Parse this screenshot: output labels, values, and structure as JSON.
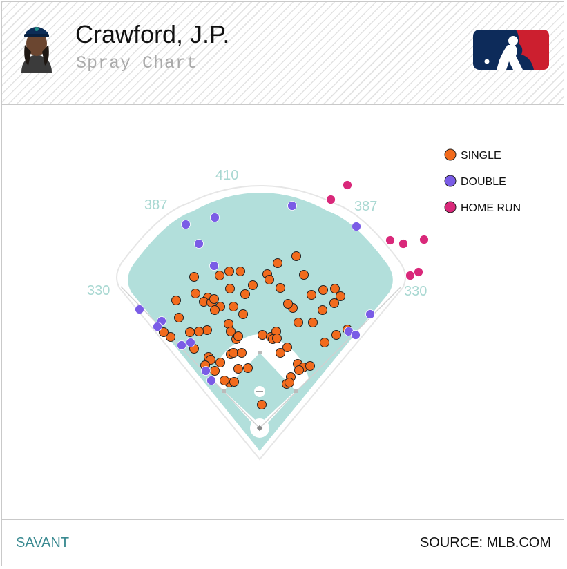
{
  "header": {
    "player_name": "Crawford, J.P.",
    "subtitle": "Spray Chart"
  },
  "footer": {
    "brand": "SAVANT",
    "source": "SOURCE: MLB.COM"
  },
  "colors": {
    "outfield": "#b2dfdb",
    "fence_label": "#a9d8d2",
    "single": "#f26b1d",
    "double": "#7a5ce6",
    "home_run": "#d9287a",
    "logo_blue": "#0d2b5a",
    "logo_red": "#cc1f2f"
  },
  "chart_data": {
    "type": "scatter",
    "title": "Spray Chart",
    "distance_labels": [
      "330",
      "387",
      "410",
      "387",
      "330"
    ],
    "legend": [
      {
        "key": "single",
        "label": "SINGLE",
        "color": "#f26b1d"
      },
      {
        "key": "double",
        "label": "DOUBLE",
        "color": "#7a5ce6"
      },
      {
        "key": "home_run",
        "label": "HOME RUN",
        "color": "#d9287a"
      }
    ],
    "legend_position": "top-right",
    "series": [
      {
        "key": "single",
        "points": [
          [
            345,
            390
          ],
          [
            329,
            390
          ],
          [
            399,
            378
          ],
          [
            426,
            368
          ],
          [
            384,
            394
          ],
          [
            387,
            402
          ],
          [
            437,
            395
          ],
          [
            363,
            410
          ],
          [
            403,
            414
          ],
          [
            352,
            423
          ],
          [
            330,
            415
          ],
          [
            278,
            398
          ],
          [
            315,
            396
          ],
          [
            280,
            422
          ],
          [
            298,
            428
          ],
          [
            292,
            434
          ],
          [
            303,
            435
          ],
          [
            316,
            441
          ],
          [
            308,
            446
          ],
          [
            252,
            432
          ],
          [
            335,
            441
          ],
          [
            349,
            452
          ],
          [
            307,
            430
          ],
          [
            448,
            424
          ],
          [
            421,
            443
          ],
          [
            414,
            437
          ],
          [
            465,
            417
          ],
          [
            482,
            415
          ],
          [
            490,
            426
          ],
          [
            481,
            436
          ],
          [
            464,
            446
          ],
          [
            450,
            464
          ],
          [
            500,
            474
          ],
          [
            484,
            482
          ],
          [
            467,
            493
          ],
          [
            429,
            464
          ],
          [
            256,
            457
          ],
          [
            328,
            466
          ],
          [
            331,
            477
          ],
          [
            339,
            488
          ],
          [
            342,
            484
          ],
          [
            297,
            475
          ],
          [
            285,
            477
          ],
          [
            272,
            478
          ],
          [
            244,
            485
          ],
          [
            234,
            478
          ],
          [
            278,
            502
          ],
          [
            299,
            514
          ],
          [
            302,
            518
          ],
          [
            294,
            526
          ],
          [
            316,
            522
          ],
          [
            331,
            510
          ],
          [
            335,
            508
          ],
          [
            347,
            508
          ],
          [
            342,
            531
          ],
          [
            356,
            530
          ],
          [
            329,
            551
          ],
          [
            336,
            550
          ],
          [
            322,
            548
          ],
          [
            308,
            534
          ],
          [
            377,
            482
          ],
          [
            389,
            485
          ],
          [
            397,
            477
          ],
          [
            392,
            488
          ],
          [
            398,
            487
          ],
          [
            413,
            500
          ],
          [
            403,
            508
          ],
          [
            428,
            524
          ],
          [
            436,
            529
          ],
          [
            446,
            527
          ],
          [
            430,
            533
          ],
          [
            418,
            543
          ],
          [
            412,
            553
          ],
          [
            416,
            551
          ],
          [
            376,
            583
          ]
        ]
      },
      {
        "key": "double",
        "points": [
          [
            266,
            322
          ],
          [
            308,
            312
          ],
          [
            285,
            350
          ],
          [
            307,
            382
          ],
          [
            420,
            295
          ],
          [
            513,
            325
          ],
          [
            199,
            445
          ],
          [
            231,
            462
          ],
          [
            225,
            470
          ],
          [
            260,
            497
          ],
          [
            273,
            493
          ],
          [
            303,
            548
          ],
          [
            295,
            534
          ],
          [
            502,
            477
          ],
          [
            512,
            482
          ],
          [
            533,
            452
          ]
        ]
      },
      {
        "key": "home_run",
        "points": [
          [
            500,
            265
          ],
          [
            476,
            286
          ],
          [
            562,
            345
          ],
          [
            581,
            350
          ],
          [
            611,
            344
          ],
          [
            591,
            396
          ],
          [
            603,
            391
          ]
        ]
      }
    ]
  }
}
